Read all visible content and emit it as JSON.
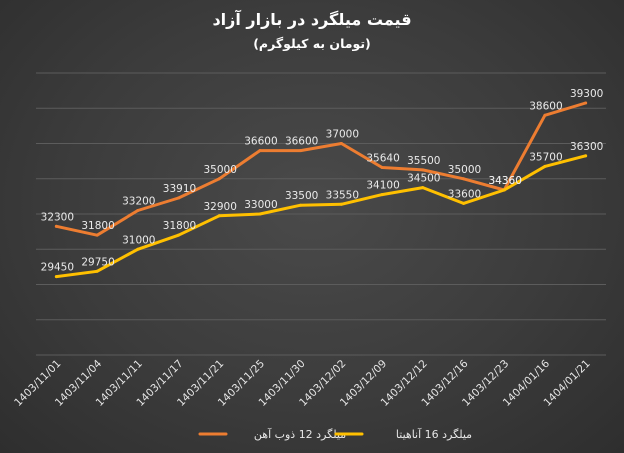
{
  "chart_data": {
    "type": "line",
    "title": "قیمت میلگرد در بازار آزاد",
    "subtitle": "(تومان به کیلوگرم)",
    "categories": [
      "1403/11/01",
      "1403/11/04",
      "1403/11/11",
      "1403/11/17",
      "1403/11/21",
      "1403/11/25",
      "1403/11/30",
      "1403/12/02",
      "1403/12/09",
      "1403/12/12",
      "1403/12/16",
      "1403/12/23",
      "1404/01/16",
      "1404/01/21"
    ],
    "ylim": [
      25000,
      41000
    ],
    "grid": true,
    "legend_position": "bottom",
    "series": [
      {
        "name": "میلگرد 12 ذوب آهن",
        "color": "#ED7D31",
        "values": [
          32300,
          31800,
          33200,
          33910,
          35000,
          36600,
          36600,
          37000,
          35640,
          35500,
          35000,
          34360,
          38600,
          39300
        ]
      },
      {
        "name": "میلگرد 16 آناهیتا",
        "color": "#FFC000",
        "values": [
          29450,
          29750,
          31000,
          31800,
          32900,
          33000,
          33500,
          33550,
          34100,
          34500,
          33600,
          34360,
          35700,
          36300
        ]
      }
    ]
  }
}
